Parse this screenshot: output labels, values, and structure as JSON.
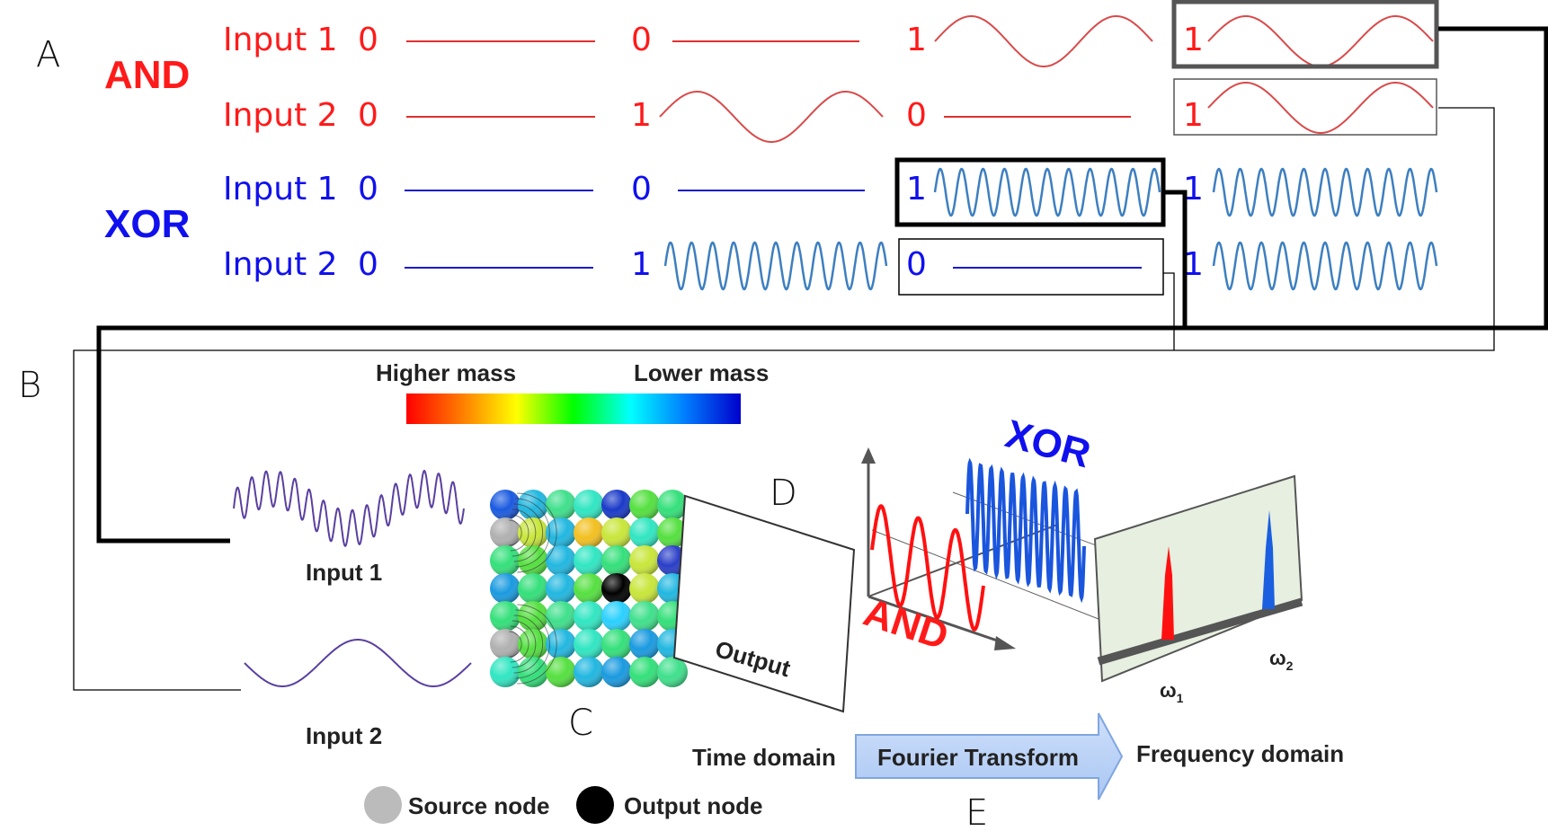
{
  "panel_letters": {
    "a": "A",
    "b": "B",
    "c": "C",
    "d": "D",
    "e": "E"
  },
  "and_block": {
    "gate": "AND",
    "input1_label": "Input 1",
    "input2_label": "Input 2",
    "input1_bits": [
      "0",
      "0",
      "1",
      "1"
    ],
    "input2_bits": [
      "0",
      "1",
      "0",
      "1"
    ]
  },
  "xor_block": {
    "gate": "XOR",
    "input1_label": "Input 1",
    "input2_label": "Input 2",
    "input1_bits": [
      "0",
      "0",
      "1",
      "1"
    ],
    "input2_bits": [
      "0",
      "1",
      "0",
      "1"
    ]
  },
  "colorbar": {
    "left_label": "Higher mass",
    "right_label": "Lower mass"
  },
  "signals": {
    "input1": "Input 1",
    "input2": "Input 2",
    "output": "Output"
  },
  "plot3d": {
    "xor_label": "XOR",
    "and_label": "AND"
  },
  "spectrum": {
    "omega1": "ω",
    "omega1_sub": "1",
    "omega2": "ω",
    "omega2_sub": "2"
  },
  "pipeline": {
    "time": "Time domain",
    "transform": "Fourier Transform",
    "freq": "Frequency domain"
  },
  "legend": {
    "source": "Source node",
    "output": "Output node"
  },
  "colors": {
    "and": "#ff1a1a",
    "xor": "#1010ee",
    "wave_blue": "#3d7fc0",
    "wave_red": "#d94a4a",
    "purple": "#5a3fa0",
    "teal": "#1f6f78"
  }
}
